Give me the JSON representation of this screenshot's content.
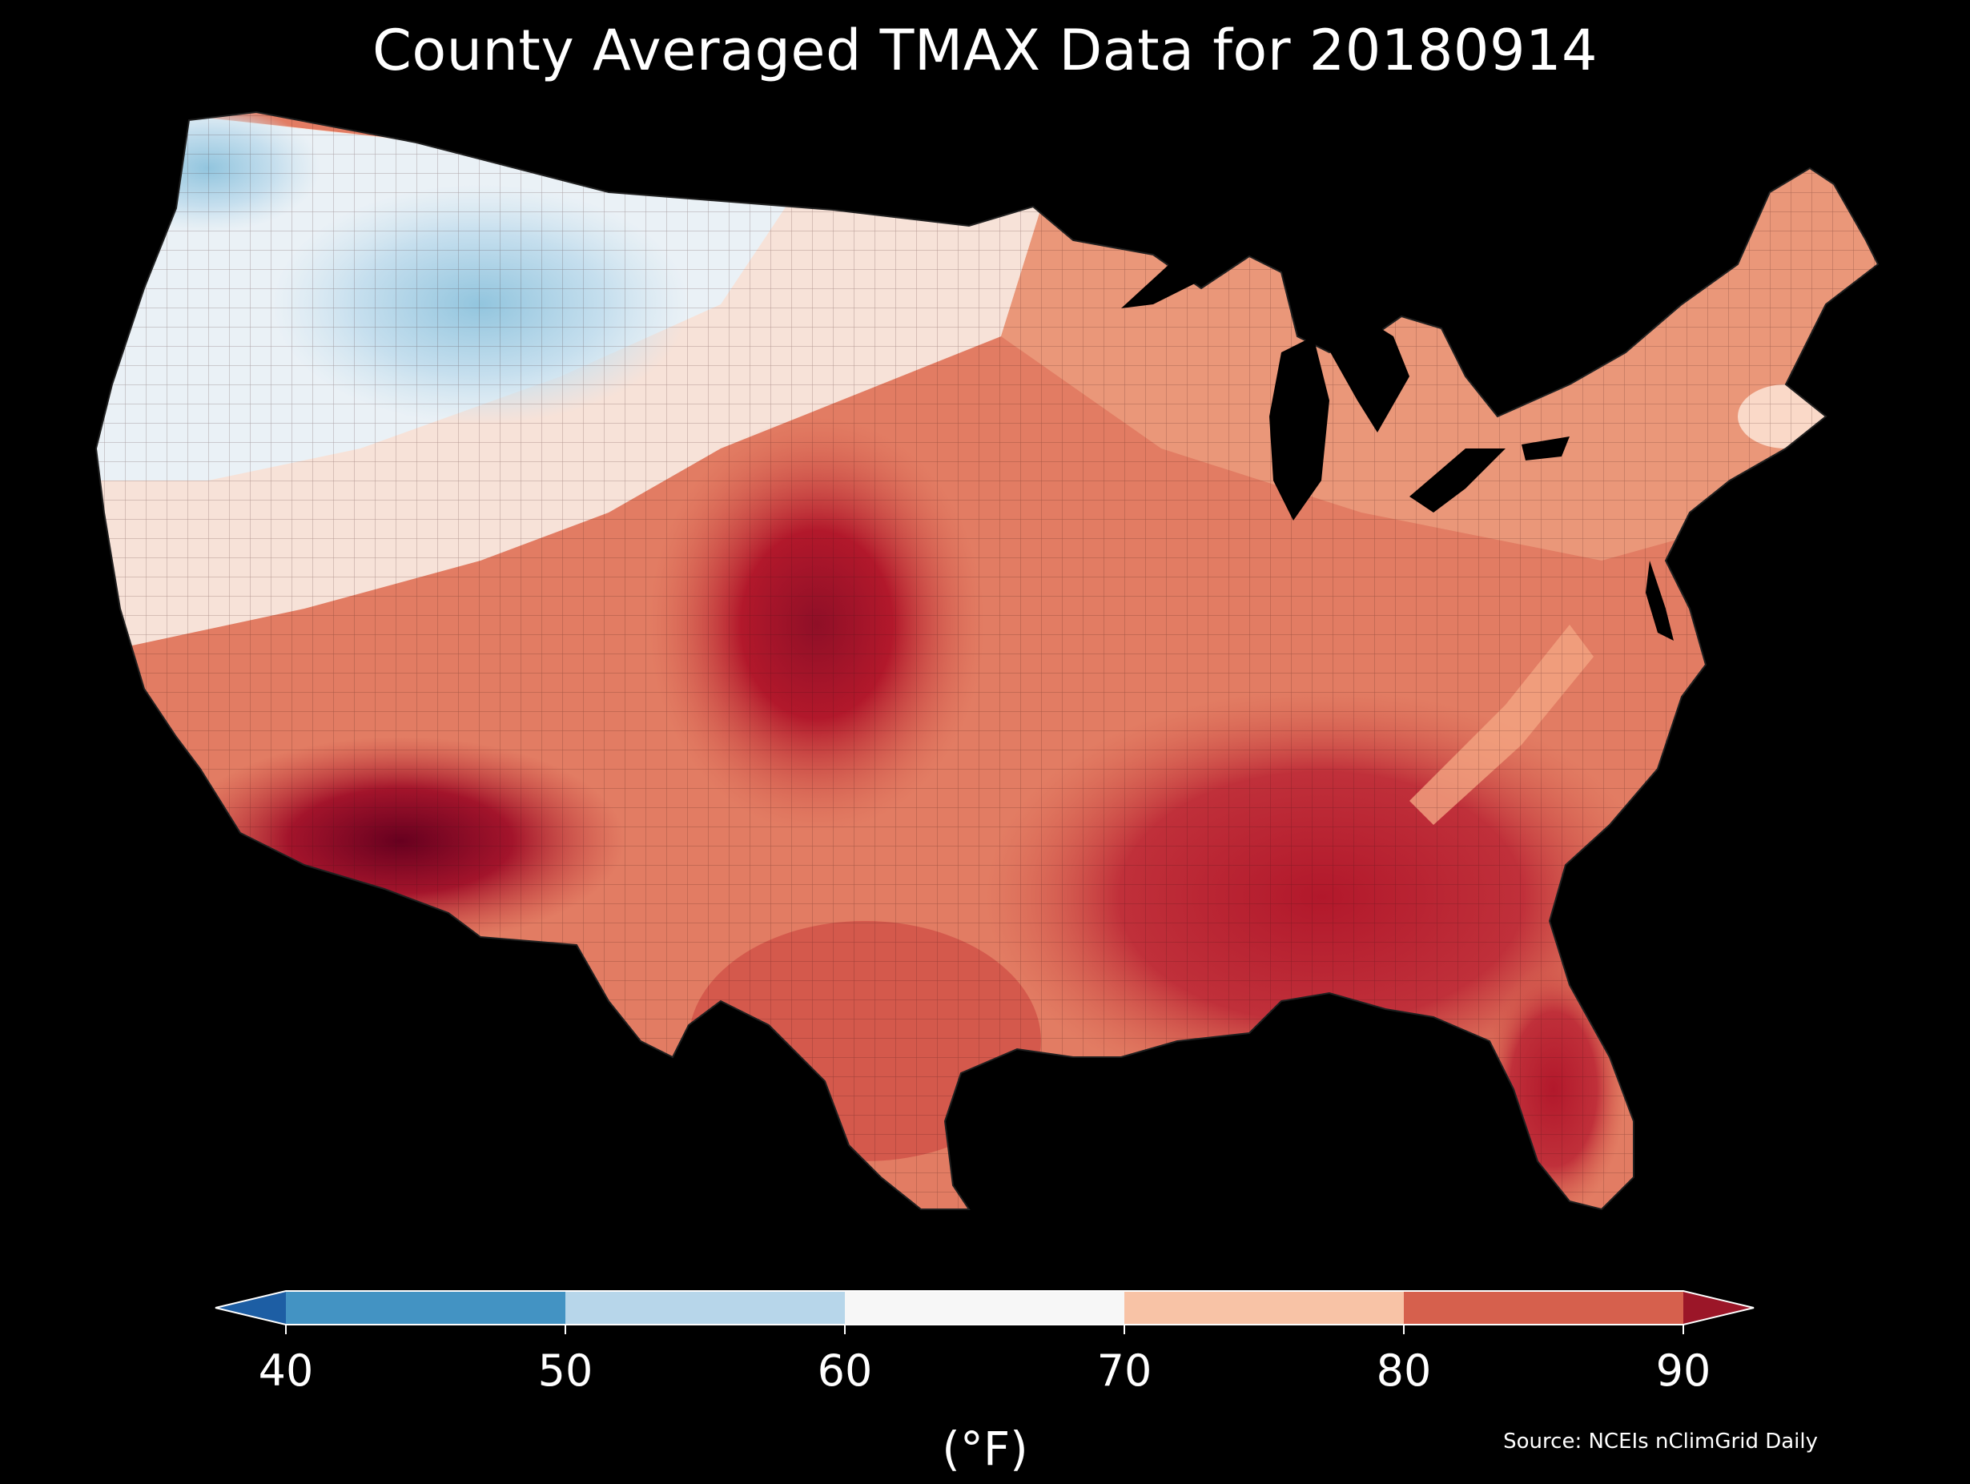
{
  "title": "County Averaged TMAX Data for 20180914",
  "colorbar": {
    "ticks": [
      "40",
      "50",
      "60",
      "70",
      "80",
      "90"
    ],
    "unit": "(°F)",
    "bins": [
      {
        "from": 40,
        "to": 50,
        "color": "#4393c3"
      },
      {
        "from": 50,
        "to": 60,
        "color": "#b7d6ea"
      },
      {
        "from": 60,
        "to": 70,
        "color": "#f7f7f7"
      },
      {
        "from": 70,
        "to": 80,
        "color": "#f8c3a6"
      },
      {
        "from": 80,
        "to": 90,
        "color": "#d6604d"
      }
    ],
    "under_color": "#1d5ea4",
    "over_color": "#9b1628"
  },
  "source": "Source: NCEIs nClimGrid Daily",
  "colors": {
    "background": "#000000",
    "very_hot": "#67001f",
    "hot": "#b2182b",
    "warm": "#d6604d",
    "mild": "#f4a582",
    "cool": "#fddbc7",
    "neutral": "#f7f7f7",
    "cold": "#d1e5f0",
    "colder": "#92c5de"
  }
}
